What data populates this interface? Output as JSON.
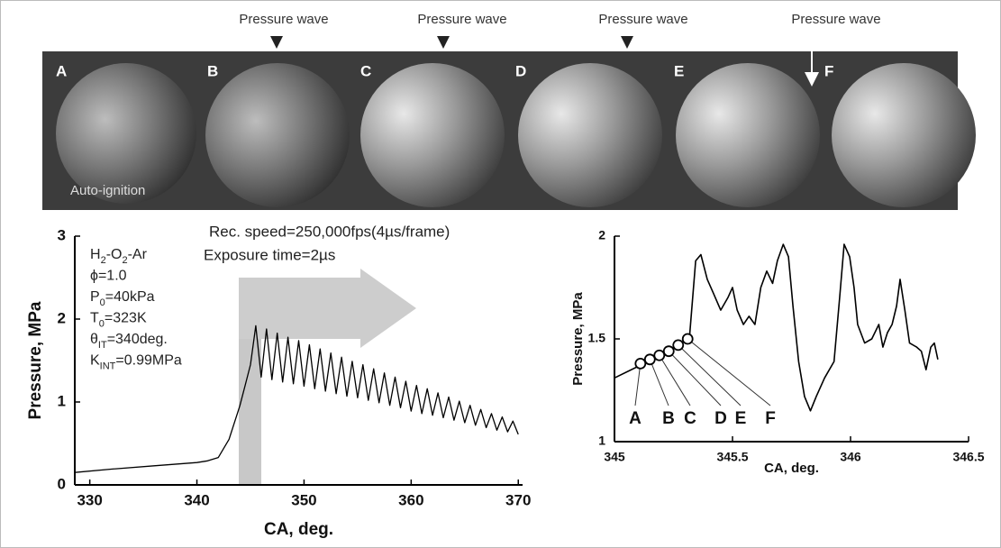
{
  "image_strip": {
    "frame_labels": [
      "A",
      "B",
      "C",
      "D",
      "E",
      "F"
    ],
    "pressure_wave_labels": [
      "Pressure wave",
      "Pressure wave",
      "Pressure wave",
      "Pressure wave"
    ],
    "caption": "Auto-ignition"
  },
  "chart_data": [
    {
      "type": "line",
      "xlabel": "CA, deg.",
      "ylabel": "Pressure, MPa",
      "color": "#000000",
      "xlim": [
        328.6,
        370.4
      ],
      "ylim": [
        0,
        3
      ],
      "xticks": [
        330,
        340,
        350,
        360,
        370
      ],
      "yticks": [
        0,
        1,
        2,
        3
      ],
      "x": [
        328.6,
        332,
        336,
        340,
        341,
        342,
        343,
        344,
        344.5,
        345,
        345.5,
        346,
        346.5,
        347,
        347.5,
        348,
        348.5,
        349,
        349.5,
        350,
        350.5,
        351,
        351.5,
        352,
        352.5,
        353,
        353.5,
        354,
        354.5,
        355,
        355.5,
        356,
        356.5,
        357,
        357.5,
        358,
        358.5,
        359,
        359.5,
        360,
        360.5,
        361,
        361.5,
        362,
        362.5,
        363,
        363.5,
        364,
        364.5,
        365,
        365.5,
        366,
        366.5,
        367,
        367.5,
        368,
        368.5,
        369,
        369.5,
        370
      ],
      "values": [
        0.15,
        0.19,
        0.23,
        0.27,
        0.29,
        0.33,
        0.55,
        0.95,
        1.2,
        1.45,
        1.92,
        1.3,
        1.88,
        1.27,
        1.83,
        1.24,
        1.78,
        1.22,
        1.74,
        1.19,
        1.69,
        1.16,
        1.64,
        1.13,
        1.59,
        1.1,
        1.54,
        1.07,
        1.49,
        1.05,
        1.45,
        1.02,
        1.4,
        0.99,
        1.35,
        0.96,
        1.3,
        0.93,
        1.25,
        0.89,
        1.2,
        0.86,
        1.16,
        0.84,
        1.11,
        0.81,
        1.06,
        0.78,
        1.01,
        0.75,
        0.96,
        0.72,
        0.91,
        0.69,
        0.86,
        0.66,
        0.82,
        0.64,
        0.77,
        0.61
      ],
      "annotations": [
        "Rec. speed=250,000fps(4µs/frame)",
        "Exposure time=2µs"
      ],
      "conditions": [
        [
          "H",
          "2",
          "-O",
          "2",
          "-Ar"
        ],
        [
          "ϕ=1.0"
        ],
        [
          "P",
          "0",
          "=40kPa"
        ],
        [
          "T",
          "0",
          "=323K"
        ],
        [
          "θ",
          "IT",
          "=340deg."
        ],
        [
          "K",
          "INT",
          "=0.99MPa"
        ]
      ]
    },
    {
      "type": "line",
      "xlabel": "CA, deg.",
      "ylabel": "Pressure, MPa",
      "color": "#000000",
      "xlim": [
        345,
        346.5
      ],
      "ylim": [
        1,
        2
      ],
      "xticks": [
        345,
        345.5,
        346,
        346.5
      ],
      "yticks": [
        1,
        1.5,
        2
      ],
      "x": [
        345.0,
        345.107,
        345.3,
        345.317,
        345.344,
        345.366,
        345.393,
        345.42,
        345.45,
        345.48,
        345.5,
        345.52,
        345.546,
        345.57,
        345.595,
        345.62,
        345.645,
        345.67,
        345.69,
        345.715,
        345.737,
        345.756,
        345.78,
        345.805,
        345.83,
        345.855,
        345.89,
        345.93,
        345.954,
        345.973,
        345.996,
        346.015,
        346.03,
        346.06,
        346.09,
        346.12,
        346.137,
        346.156,
        346.176,
        346.195,
        346.21,
        346.23,
        346.25,
        346.28,
        346.3,
        346.32,
        346.34,
        346.355,
        346.37
      ],
      "values": [
        1.31,
        1.37,
        1.49,
        1.5,
        1.88,
        1.91,
        1.79,
        1.72,
        1.64,
        1.7,
        1.75,
        1.64,
        1.57,
        1.61,
        1.57,
        1.75,
        1.83,
        1.77,
        1.88,
        1.96,
        1.9,
        1.66,
        1.39,
        1.22,
        1.15,
        1.22,
        1.31,
        1.39,
        1.7,
        1.96,
        1.9,
        1.75,
        1.57,
        1.48,
        1.5,
        1.57,
        1.46,
        1.53,
        1.57,
        1.66,
        1.79,
        1.64,
        1.48,
        1.46,
        1.44,
        1.35,
        1.46,
        1.48,
        1.4
      ],
      "markers": {
        "labels": [
          "A",
          "B",
          "C",
          "D",
          "E",
          "F"
        ],
        "x": [
          345.11,
          345.15,
          345.19,
          345.23,
          345.27,
          345.31
        ],
        "values": [
          1.38,
          1.4,
          1.42,
          1.44,
          1.47,
          1.5
        ]
      }
    }
  ]
}
